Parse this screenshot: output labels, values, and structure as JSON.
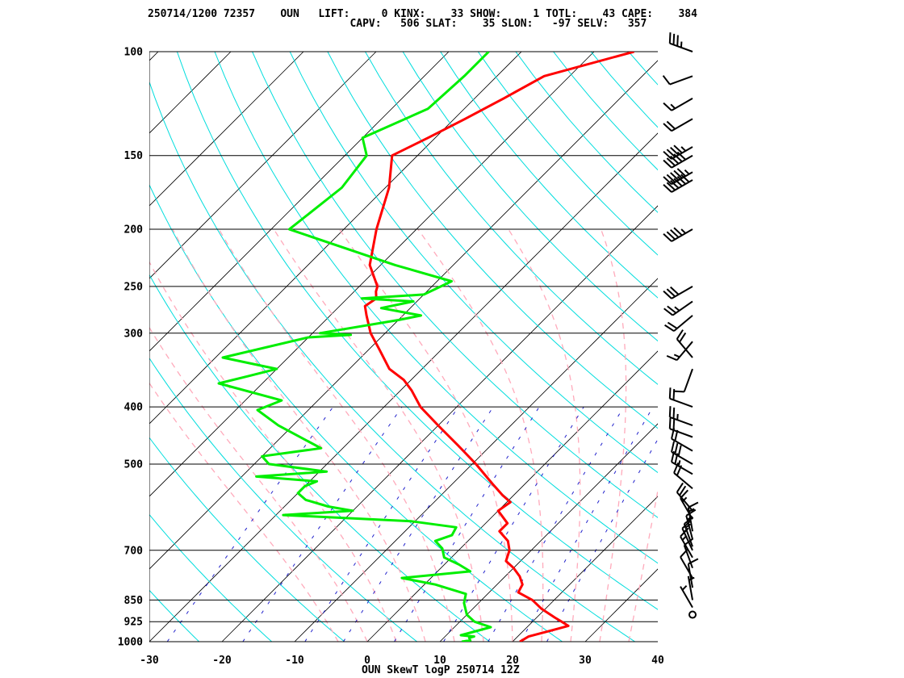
{
  "header": {
    "line1": "250714/1200 72357    OUN   LIFT:     0 KINX:    33 SHOW:     1 TOTL:    43 CAPE:    384",
    "line2": "                                CAPV:   506 SLAT:    35 SLON:   -97 SELV:   357"
  },
  "chart_data": {
    "type": "line",
    "title": "OUN SkewT logP 250714 12Z",
    "x_axis": {
      "label": "",
      "ticks": [
        -30,
        -20,
        -10,
        0,
        10,
        20,
        30,
        40
      ],
      "range": [
        -30,
        40
      ],
      "units": "degC"
    },
    "y_axis": {
      "label": "",
      "scale": "log",
      "ticks": [
        100,
        150,
        200,
        250,
        300,
        400,
        500,
        700,
        850,
        925,
        1000
      ],
      "range": [
        1000,
        100
      ],
      "units": "hPa"
    },
    "colors": {
      "temperature": "#ff0000",
      "dewpoint": "#00ee00",
      "isotherm": "#000000",
      "dry_adiabat": "#00dddd",
      "moist_adiabat": "#ffaabb",
      "mixing_ratio": "#2222cc",
      "isobar": "#000000"
    },
    "series": [
      {
        "key": "temperature",
        "points": [
          [
            100,
            -44.5
          ],
          [
            110,
            -53.5
          ],
          [
            120,
            -56
          ],
          [
            130,
            -58.5
          ],
          [
            140,
            -61
          ],
          [
            150,
            -63.5
          ],
          [
            170,
            -59.5
          ],
          [
            200,
            -55.5
          ],
          [
            230,
            -51.5
          ],
          [
            250,
            -47.5
          ],
          [
            255,
            -47
          ],
          [
            262,
            -46
          ],
          [
            270,
            -46.5
          ],
          [
            280,
            -45
          ],
          [
            300,
            -42
          ],
          [
            320,
            -38.5
          ],
          [
            345,
            -34.5
          ],
          [
            360,
            -31
          ],
          [
            375,
            -28.5
          ],
          [
            400,
            -25
          ],
          [
            430,
            -20
          ],
          [
            465,
            -14.5
          ],
          [
            500,
            -9.5
          ],
          [
            540,
            -4.5
          ],
          [
            565,
            -1.5
          ],
          [
            580,
            0.5
          ],
          [
            600,
            0
          ],
          [
            630,
            3
          ],
          [
            650,
            3
          ],
          [
            675,
            5.5
          ],
          [
            700,
            7
          ],
          [
            730,
            8
          ],
          [
            750,
            10
          ],
          [
            775,
            12
          ],
          [
            800,
            13.5
          ],
          [
            825,
            14
          ],
          [
            850,
            17
          ],
          [
            880,
            19.5
          ],
          [
            910,
            22.5
          ],
          [
            925,
            24
          ],
          [
            940,
            25.5
          ],
          [
            955,
            24
          ],
          [
            980,
            21.5
          ],
          [
            1000,
            21
          ]
        ]
      },
      {
        "key": "dewpoint",
        "points": [
          [
            100,
            -64.5
          ],
          [
            110,
            -64.5
          ],
          [
            125,
            -65
          ],
          [
            140,
            -70
          ],
          [
            150,
            -67
          ],
          [
            170,
            -66
          ],
          [
            200,
            -67.5
          ],
          [
            230,
            -48
          ],
          [
            245,
            -38
          ],
          [
            258,
            -40
          ],
          [
            262,
            -48
          ],
          [
            265,
            -40.5
          ],
          [
            272,
            -44
          ],
          [
            280,
            -37.5
          ],
          [
            285,
            -40
          ],
          [
            300,
            -49
          ],
          [
            302,
            -44.5
          ],
          [
            305,
            -50
          ],
          [
            330,
            -59
          ],
          [
            345,
            -50
          ],
          [
            355,
            -53
          ],
          [
            365,
            -56
          ],
          [
            390,
            -45
          ],
          [
            405,
            -47
          ],
          [
            430,
            -42
          ],
          [
            470,
            -33
          ],
          [
            485,
            -40
          ],
          [
            500,
            -38
          ],
          [
            515,
            -29
          ],
          [
            525,
            -38
          ],
          [
            535,
            -29
          ],
          [
            545,
            -30
          ],
          [
            560,
            -30
          ],
          [
            575,
            -28
          ],
          [
            590,
            -24
          ],
          [
            600,
            -20
          ],
          [
            610,
            -29
          ],
          [
            625,
            -10.5
          ],
          [
            640,
            -3.5
          ],
          [
            660,
            -3
          ],
          [
            675,
            -4.5
          ],
          [
            695,
            -2.5
          ],
          [
            720,
            -1
          ],
          [
            740,
            2
          ],
          [
            760,
            4.5
          ],
          [
            780,
            -4
          ],
          [
            800,
            1.5
          ],
          [
            830,
            7
          ],
          [
            860,
            8
          ],
          [
            900,
            10
          ],
          [
            925,
            12
          ],
          [
            945,
            15
          ],
          [
            975,
            12
          ],
          [
            980,
            14
          ],
          [
            985,
            13.5
          ],
          [
            995,
            14
          ],
          [
            1000,
            13
          ]
        ]
      }
    ],
    "wind_barbs": [
      {
        "p": 100,
        "dir": 290,
        "kt": 35
      },
      {
        "p": 110,
        "dir": 250,
        "kt": 10
      },
      {
        "p": 120,
        "dir": 240,
        "kt": 15
      },
      {
        "p": 130,
        "dir": 240,
        "kt": 20
      },
      {
        "p": 145,
        "dir": 240,
        "kt": 45
      },
      {
        "p": 150,
        "dir": 240,
        "kt": 50
      },
      {
        "p": 160,
        "dir": 240,
        "kt": 55
      },
      {
        "p": 165,
        "dir": 240,
        "kt": 60
      },
      {
        "p": 200,
        "dir": 240,
        "kt": 45
      },
      {
        "p": 250,
        "dir": 240,
        "kt": 30
      },
      {
        "p": 265,
        "dir": 235,
        "kt": 25
      },
      {
        "p": 280,
        "dir": 230,
        "kt": 20
      },
      {
        "p": 310,
        "dir": 220,
        "kt": 15
      },
      {
        "p": 330,
        "dir": 320,
        "kt": 20
      },
      {
        "p": 345,
        "dir": 200,
        "kt": 10
      },
      {
        "p": 400,
        "dir": 290,
        "kt": 20
      },
      {
        "p": 430,
        "dir": 290,
        "kt": 25
      },
      {
        "p": 450,
        "dir": 290,
        "kt": 20
      },
      {
        "p": 475,
        "dir": 300,
        "kt": 20
      },
      {
        "p": 500,
        "dir": 300,
        "kt": 30
      },
      {
        "p": 520,
        "dir": 300,
        "kt": 25
      },
      {
        "p": 550,
        "dir": 310,
        "kt": 20
      },
      {
        "p": 600,
        "dir": 320,
        "kt": 20
      },
      {
        "p": 620,
        "dir": 330,
        "kt": 15
      },
      {
        "p": 650,
        "dir": 350,
        "kt": 15
      },
      {
        "p": 670,
        "dir": 345,
        "kt": 15
      },
      {
        "p": 690,
        "dir": 340,
        "kt": 15
      },
      {
        "p": 700,
        "dir": 335,
        "kt": 15
      },
      {
        "p": 720,
        "dir": 330,
        "kt": 15
      },
      {
        "p": 750,
        "dir": 340,
        "kt": 10
      },
      {
        "p": 780,
        "dir": 330,
        "kt": 10
      },
      {
        "p": 810,
        "dir": 350,
        "kt": 10
      },
      {
        "p": 850,
        "dir": 350,
        "kt": 5
      },
      {
        "p": 875,
        "dir": 330,
        "kt": 5
      },
      {
        "p": 900,
        "dir": 320,
        "kt": 0
      }
    ]
  }
}
